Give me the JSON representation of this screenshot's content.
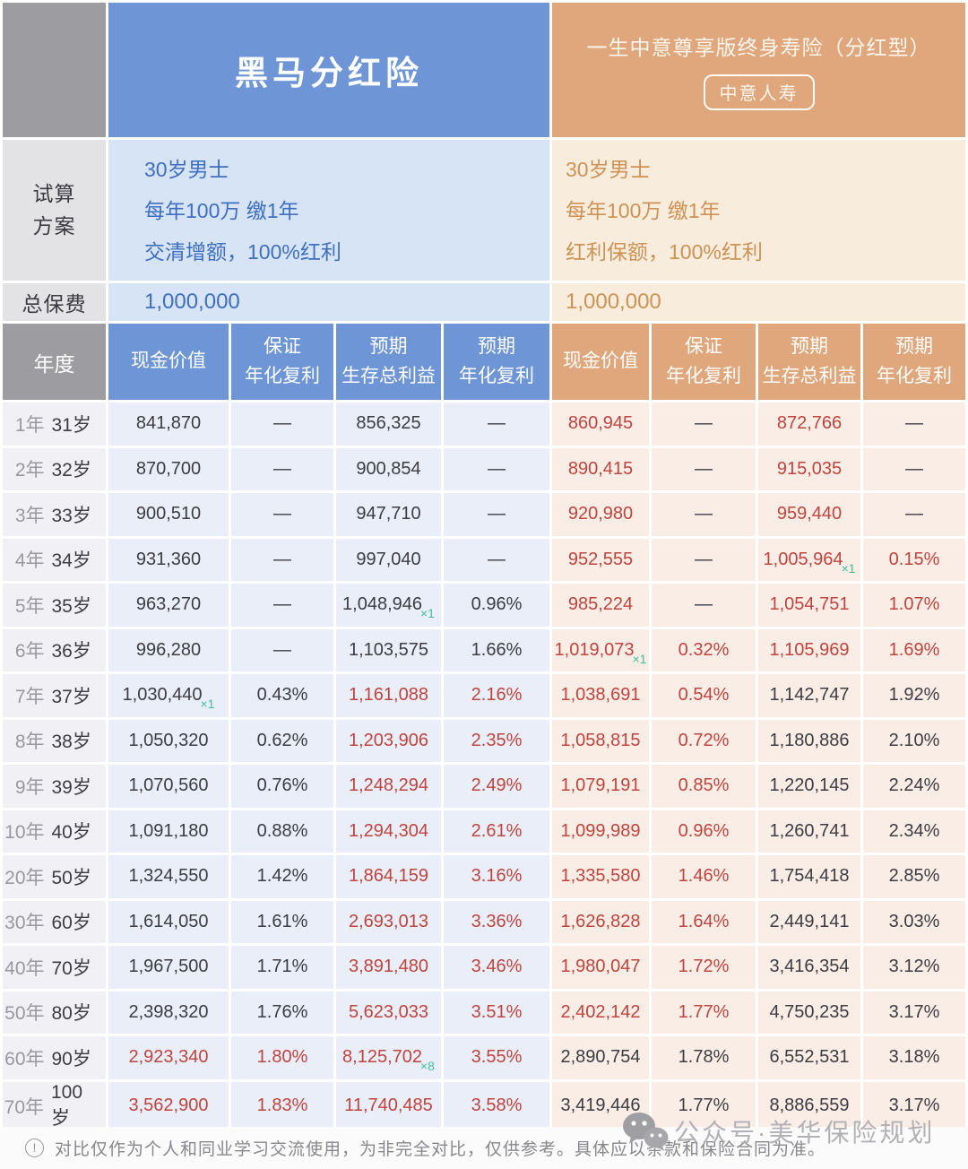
{
  "left_product": {
    "title": "黑马分红险",
    "theme_color": "#6e96d6",
    "plan_lines": [
      "30岁男士",
      "每年100万 缴1年",
      "交清增额，100%红利"
    ],
    "total_premium": "1,000,000"
  },
  "right_product": {
    "title": "一生中意尊享版终身寿险（分红型）",
    "badge": "中意人寿",
    "theme_color": "#dfa77b",
    "plan_lines": [
      "30岁男士",
      "每年100万 缴1年",
      "红利保额，100%红利"
    ],
    "total_premium": "1,000,000"
  },
  "labels": {
    "plan": "试算\n方案",
    "total_premium": "总保费",
    "year": "年度",
    "col_headers": [
      "现金价值",
      "保证\n年化复利",
      "预期\n生存总利益",
      "预期\n年化复利"
    ]
  },
  "status_colors": {
    "better_value_red": "#c0443d",
    "annotation_green": "#3fbf9a",
    "left_text_blue": "#3e6fc0",
    "right_text_tan": "#cd9254"
  },
  "table": {
    "rows": [
      {
        "year": "1年",
        "age": "31岁",
        "left": [
          {
            "t": "841,870"
          },
          {
            "t": "—"
          },
          {
            "t": "856,325"
          },
          {
            "t": "—"
          }
        ],
        "right": [
          {
            "t": "860,945",
            "red": true
          },
          {
            "t": "—"
          },
          {
            "t": "872,766",
            "red": true
          },
          {
            "t": "—"
          }
        ]
      },
      {
        "year": "2年",
        "age": "32岁",
        "left": [
          {
            "t": "870,700"
          },
          {
            "t": "—"
          },
          {
            "t": "900,854"
          },
          {
            "t": "—"
          }
        ],
        "right": [
          {
            "t": "890,415",
            "red": true
          },
          {
            "t": "—"
          },
          {
            "t": "915,035",
            "red": true
          },
          {
            "t": "—"
          }
        ]
      },
      {
        "year": "3年",
        "age": "33岁",
        "left": [
          {
            "t": "900,510"
          },
          {
            "t": "—"
          },
          {
            "t": "947,710"
          },
          {
            "t": "—"
          }
        ],
        "right": [
          {
            "t": "920,980",
            "red": true
          },
          {
            "t": "—"
          },
          {
            "t": "959,440",
            "red": true
          },
          {
            "t": "—"
          }
        ]
      },
      {
        "year": "4年",
        "age": "34岁",
        "left": [
          {
            "t": "931,360"
          },
          {
            "t": "—"
          },
          {
            "t": "997,040"
          },
          {
            "t": "—"
          }
        ],
        "right": [
          {
            "t": "952,555",
            "red": true
          },
          {
            "t": "—"
          },
          {
            "t": "1,005,964",
            "red": true,
            "note": "×1"
          },
          {
            "t": "0.15%",
            "red": true
          }
        ]
      },
      {
        "year": "5年",
        "age": "35岁",
        "left": [
          {
            "t": "963,270"
          },
          {
            "t": "—"
          },
          {
            "t": "1,048,946",
            "note": "×1"
          },
          {
            "t": "0.96%"
          }
        ],
        "right": [
          {
            "t": "985,224",
            "red": true
          },
          {
            "t": "—"
          },
          {
            "t": "1,054,751",
            "red": true
          },
          {
            "t": "1.07%",
            "red": true
          }
        ]
      },
      {
        "year": "6年",
        "age": "36岁",
        "left": [
          {
            "t": "996,280"
          },
          {
            "t": "—"
          },
          {
            "t": "1,103,575"
          },
          {
            "t": "1.66%"
          }
        ],
        "right": [
          {
            "t": "1,019,073",
            "red": true,
            "note": "×1"
          },
          {
            "t": "0.32%",
            "red": true
          },
          {
            "t": "1,105,969",
            "red": true
          },
          {
            "t": "1.69%",
            "red": true
          }
        ]
      },
      {
        "year": "7年",
        "age": "37岁",
        "left": [
          {
            "t": "1,030,440",
            "note": "×1"
          },
          {
            "t": "0.43%"
          },
          {
            "t": "1,161,088",
            "red": true
          },
          {
            "t": "2.16%",
            "red": true
          }
        ],
        "right": [
          {
            "t": "1,038,691",
            "red": true
          },
          {
            "t": "0.54%",
            "red": true
          },
          {
            "t": "1,142,747"
          },
          {
            "t": "1.92%"
          }
        ]
      },
      {
        "year": "8年",
        "age": "38岁",
        "left": [
          {
            "t": "1,050,320"
          },
          {
            "t": "0.62%"
          },
          {
            "t": "1,203,906",
            "red": true
          },
          {
            "t": "2.35%",
            "red": true
          }
        ],
        "right": [
          {
            "t": "1,058,815",
            "red": true
          },
          {
            "t": "0.72%",
            "red": true
          },
          {
            "t": "1,180,886"
          },
          {
            "t": "2.10%"
          }
        ]
      },
      {
        "year": "9年",
        "age": "39岁",
        "left": [
          {
            "t": "1,070,560"
          },
          {
            "t": "0.76%"
          },
          {
            "t": "1,248,294",
            "red": true
          },
          {
            "t": "2.49%",
            "red": true
          }
        ],
        "right": [
          {
            "t": "1,079,191",
            "red": true
          },
          {
            "t": "0.85%",
            "red": true
          },
          {
            "t": "1,220,145"
          },
          {
            "t": "2.24%"
          }
        ]
      },
      {
        "year": "10年",
        "age": "40岁",
        "left": [
          {
            "t": "1,091,180"
          },
          {
            "t": "0.88%"
          },
          {
            "t": "1,294,304",
            "red": true
          },
          {
            "t": "2.61%",
            "red": true
          }
        ],
        "right": [
          {
            "t": "1,099,989",
            "red": true
          },
          {
            "t": "0.96%",
            "red": true
          },
          {
            "t": "1,260,741"
          },
          {
            "t": "2.34%"
          }
        ]
      },
      {
        "year": "20年",
        "age": "50岁",
        "left": [
          {
            "t": "1,324,550"
          },
          {
            "t": "1.42%"
          },
          {
            "t": "1,864,159",
            "red": true
          },
          {
            "t": "3.16%",
            "red": true
          }
        ],
        "right": [
          {
            "t": "1,335,580",
            "red": true
          },
          {
            "t": "1.46%",
            "red": true
          },
          {
            "t": "1,754,418"
          },
          {
            "t": "2.85%"
          }
        ]
      },
      {
        "year": "30年",
        "age": "60岁",
        "left": [
          {
            "t": "1,614,050"
          },
          {
            "t": "1.61%"
          },
          {
            "t": "2,693,013",
            "red": true
          },
          {
            "t": "3.36%",
            "red": true
          }
        ],
        "right": [
          {
            "t": "1,626,828",
            "red": true
          },
          {
            "t": "1.64%",
            "red": true
          },
          {
            "t": "2,449,141"
          },
          {
            "t": "3.03%"
          }
        ]
      },
      {
        "year": "40年",
        "age": "70岁",
        "left": [
          {
            "t": "1,967,500"
          },
          {
            "t": "1.71%"
          },
          {
            "t": "3,891,480",
            "red": true
          },
          {
            "t": "3.46%",
            "red": true
          }
        ],
        "right": [
          {
            "t": "1,980,047",
            "red": true
          },
          {
            "t": "1.72%",
            "red": true
          },
          {
            "t": "3,416,354"
          },
          {
            "t": "3.12%"
          }
        ]
      },
      {
        "year": "50年",
        "age": "80岁",
        "left": [
          {
            "t": "2,398,320"
          },
          {
            "t": "1.76%"
          },
          {
            "t": "5,623,033",
            "red": true
          },
          {
            "t": "3.51%",
            "red": true
          }
        ],
        "right": [
          {
            "t": "2,402,142",
            "red": true
          },
          {
            "t": "1.77%",
            "red": true
          },
          {
            "t": "4,750,235"
          },
          {
            "t": "3.17%"
          }
        ]
      },
      {
        "year": "60年",
        "age": "90岁",
        "left": [
          {
            "t": "2,923,340",
            "red": true
          },
          {
            "t": "1.80%",
            "red": true
          },
          {
            "t": "8,125,702",
            "red": true,
            "note": "×8"
          },
          {
            "t": "3.55%",
            "red": true
          }
        ],
        "right": [
          {
            "t": "2,890,754"
          },
          {
            "t": "1.78%"
          },
          {
            "t": "6,552,531"
          },
          {
            "t": "3.18%"
          }
        ]
      },
      {
        "year": "70年",
        "age": "100岁",
        "left": [
          {
            "t": "3,562,900",
            "red": true
          },
          {
            "t": "1.83%",
            "red": true
          },
          {
            "t": "11,740,485",
            "red": true
          },
          {
            "t": "3.58%",
            "red": true
          }
        ],
        "right": [
          {
            "t": "3,419,446"
          },
          {
            "t": "1.77%"
          },
          {
            "t": "8,886,559"
          },
          {
            "t": "3.17%"
          }
        ]
      }
    ]
  },
  "footer": {
    "icon_glyph": "!",
    "disclaimer": "对比仅作为个人和同业学习交流使用，为非完全对比，仅供参考。具体应以条款和保险合同为准。",
    "watermark": "公众号·美华保险规划"
  }
}
